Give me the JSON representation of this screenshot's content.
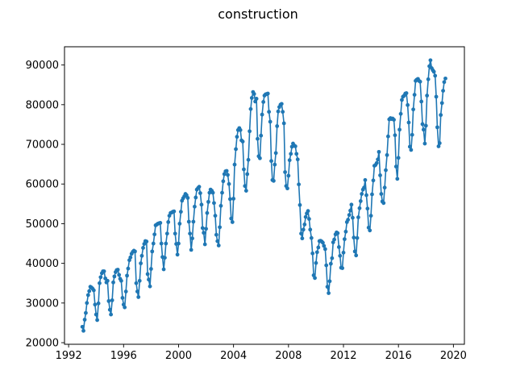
{
  "chart_data": {
    "type": "line",
    "title": "construction",
    "xlabel": "",
    "ylabel": "",
    "xlim": [
      1991.7,
      2020.8
    ],
    "ylim": [
      19600,
      94600
    ],
    "x_ticks": [
      1992,
      1996,
      2000,
      2004,
      2008,
      2012,
      2016,
      2020
    ],
    "x_tick_labels": [
      "1992",
      "1996",
      "2000",
      "2004",
      "2008",
      "2012",
      "2016",
      "2020"
    ],
    "y_ticks": [
      20000,
      30000,
      40000,
      50000,
      60000,
      70000,
      80000,
      90000
    ],
    "y_tick_labels": [
      "20000",
      "30000",
      "40000",
      "50000",
      "60000",
      "70000",
      "80000",
      "90000"
    ],
    "grid": false,
    "legend": "none",
    "marker": "circle",
    "line_color": "#1f77b4",
    "series": [
      {
        "x": [
          1993.0,
          1993.08,
          1993.17,
          1993.25,
          1993.33,
          1993.42,
          1993.5,
          1993.58,
          1993.67,
          1993.75,
          1993.83,
          1993.92,
          1994.0,
          1994.08,
          1994.17,
          1994.25,
          1994.33,
          1994.42,
          1994.5,
          1994.58,
          1994.67,
          1994.75,
          1994.83,
          1994.92,
          1995.0,
          1995.08,
          1995.17,
          1995.25,
          1995.33,
          1995.42,
          1995.5,
          1995.58,
          1995.67,
          1995.75,
          1995.83,
          1995.92,
          1996.0,
          1996.08,
          1996.17,
          1996.25,
          1996.33,
          1996.42,
          1996.5,
          1996.58,
          1996.67,
          1996.75,
          1996.83,
          1996.92,
          1997.0,
          1997.08,
          1997.17,
          1997.25,
          1997.33,
          1997.42,
          1997.5,
          1997.58,
          1997.67,
          1997.75,
          1997.83,
          1997.92,
          1998.0,
          1998.08,
          1998.17,
          1998.25,
          1998.33,
          1998.42,
          1998.5,
          1998.58,
          1998.67,
          1998.75,
          1998.83,
          1998.92,
          1999.0,
          1999.08,
          1999.17,
          1999.25,
          1999.33,
          1999.42,
          1999.5,
          1999.58,
          1999.67,
          1999.75,
          1999.83,
          1999.92,
          2000.0,
          2000.08,
          2000.17,
          2000.25,
          2000.33,
          2000.42,
          2000.5,
          2000.58,
          2000.67,
          2000.75,
          2000.83,
          2000.92,
          2001.0,
          2001.08,
          2001.17,
          2001.25,
          2001.33,
          2001.42,
          2001.5,
          2001.58,
          2001.67,
          2001.75,
          2001.83,
          2001.92,
          2002.0,
          2002.08,
          2002.17,
          2002.25,
          2002.33,
          2002.42,
          2002.5,
          2002.58,
          2002.67,
          2002.75,
          2002.83,
          2002.92,
          2003.0,
          2003.08,
          2003.17,
          2003.25,
          2003.33,
          2003.42,
          2003.5,
          2003.58,
          2003.67,
          2003.75,
          2003.83,
          2003.92,
          2004.0,
          2004.08,
          2004.17,
          2004.25,
          2004.33,
          2004.42,
          2004.5,
          2004.58,
          2004.67,
          2004.75,
          2004.83,
          2004.92,
          2005.0,
          2005.08,
          2005.17,
          2005.25,
          2005.33,
          2005.42,
          2005.5,
          2005.58,
          2005.67,
          2005.75,
          2005.83,
          2005.92,
          2006.0,
          2006.08,
          2006.17,
          2006.25,
          2006.33,
          2006.42,
          2006.5,
          2006.58,
          2006.67,
          2006.75,
          2006.83,
          2006.92,
          2007.0,
          2007.08,
          2007.17,
          2007.25,
          2007.33,
          2007.42,
          2007.5,
          2007.58,
          2007.67,
          2007.75,
          2007.83,
          2007.92,
          2008.0,
          2008.08,
          2008.17,
          2008.25,
          2008.33,
          2008.42,
          2008.5,
          2008.58,
          2008.67,
          2008.75,
          2008.83,
          2008.92,
          2009.0,
          2009.08,
          2009.17,
          2009.25,
          2009.33,
          2009.42,
          2009.5,
          2009.58,
          2009.67,
          2009.75,
          2009.83,
          2009.92,
          2010.0,
          2010.08,
          2010.17,
          2010.25,
          2010.33,
          2010.42,
          2010.5,
          2010.58,
          2010.67,
          2010.75,
          2010.83,
          2010.92,
          2011.0,
          2011.08,
          2011.17,
          2011.25,
          2011.33,
          2011.42,
          2011.5,
          2011.58,
          2011.67,
          2011.75,
          2011.83,
          2011.92,
          2012.0,
          2012.08,
          2012.17,
          2012.25,
          2012.33,
          2012.42,
          2012.5,
          2012.58,
          2012.67,
          2012.75,
          2012.83,
          2012.92,
          2013.0,
          2013.08,
          2013.17,
          2013.25,
          2013.33,
          2013.42,
          2013.5,
          2013.58,
          2013.67,
          2013.75,
          2013.83,
          2013.92,
          2014.0,
          2014.08,
          2014.17,
          2014.25,
          2014.33,
          2014.42,
          2014.5,
          2014.58,
          2014.67,
          2014.75,
          2014.83,
          2014.92,
          2015.0,
          2015.08,
          2015.17,
          2015.25,
          2015.33,
          2015.42,
          2015.5,
          2015.58,
          2015.67,
          2015.75,
          2015.83,
          2015.92,
          2016.0,
          2016.08,
          2016.17,
          2016.25,
          2016.33,
          2016.42,
          2016.5,
          2016.58,
          2016.67,
          2016.75,
          2016.83,
          2016.92,
          2017.0,
          2017.08,
          2017.17,
          2017.25,
          2017.33,
          2017.42,
          2017.5,
          2017.58,
          2017.67,
          2017.75,
          2017.83,
          2017.92,
          2018.0,
          2018.08,
          2018.17,
          2018.25,
          2018.33,
          2018.42,
          2018.5,
          2018.58,
          2018.67,
          2018.75,
          2018.83,
          2018.92,
          2019.0,
          2019.08,
          2019.17,
          2019.25,
          2019.33,
          2019.42
        ],
        "values": [
          24000,
          23000,
          25800,
          27500,
          30000,
          32000,
          33000,
          34100,
          33900,
          33600,
          33200,
          29600,
          27100,
          25700,
          29900,
          35000,
          36500,
          37500,
          38000,
          38000,
          36200,
          35200,
          35600,
          30500,
          28300,
          27100,
          30700,
          35200,
          36700,
          37800,
          38300,
          38400,
          37100,
          36100,
          35600,
          31300,
          29600,
          28900,
          32900,
          36900,
          38700,
          40800,
          41500,
          42400,
          42900,
          43200,
          43000,
          35000,
          32900,
          31500,
          35600,
          40000,
          41900,
          43900,
          44900,
          45600,
          45500,
          37300,
          35900,
          34200,
          38600,
          43000,
          45000,
          47300,
          49600,
          49800,
          50000,
          50100,
          50200,
          45000,
          41600,
          38500,
          41400,
          45000,
          47500,
          50400,
          52000,
          52700,
          52800,
          53000,
          53100,
          47500,
          44900,
          42200,
          45000,
          50000,
          53000,
          55800,
          56400,
          56900,
          57500,
          57200,
          56500,
          50500,
          47500,
          43400,
          46300,
          50500,
          54300,
          56600,
          58600,
          59000,
          59300,
          57700,
          54800,
          48900,
          47700,
          44800,
          48700,
          52700,
          55500,
          57800,
          58600,
          58300,
          57800,
          55200,
          52000,
          47200,
          45600,
          44500,
          49100,
          54500,
          57800,
          60700,
          62500,
          63200,
          63300,
          62300,
          60000,
          56200,
          51300,
          50400,
          56300,
          64900,
          68800,
          71900,
          73600,
          74100,
          73600,
          71000,
          70700,
          63700,
          59500,
          58300,
          62500,
          66100,
          73300,
          78900,
          81700,
          83200,
          82700,
          80800,
          81500,
          71400,
          67000,
          66500,
          72200,
          77500,
          80700,
          82300,
          82600,
          82700,
          82800,
          78200,
          75700,
          65800,
          61000,
          60800,
          64900,
          67800,
          74600,
          78300,
          79400,
          80000,
          80200,
          78200,
          75300,
          63000,
          59500,
          58900,
          62100,
          66000,
          67600,
          69400,
          70200,
          69700,
          69500,
          67600,
          66200,
          59900,
          54700,
          47500,
          46300,
          48500,
          49800,
          51700,
          52600,
          53200,
          51200,
          48500,
          46400,
          42500,
          37000,
          36300,
          40100,
          42800,
          44000,
          45600,
          45700,
          45500,
          45200,
          44400,
          43600,
          39500,
          34100,
          32500,
          35500,
          39900,
          41300,
          45300,
          46000,
          47300,
          47800,
          47600,
          44100,
          41900,
          38900,
          38800,
          42700,
          46100,
          48000,
          50400,
          51000,
          52200,
          53300,
          54800,
          51500,
          46500,
          43000,
          42000,
          46400,
          51600,
          53900,
          55700,
          57500,
          58600,
          59100,
          61000,
          57200,
          53800,
          49000,
          48300,
          52000,
          57400,
          60900,
          64600,
          64800,
          65300,
          66200,
          68100,
          62200,
          57500,
          55600,
          55200,
          59100,
          63500,
          67300,
          72000,
          76300,
          76600,
          76400,
          76500,
          76200,
          72300,
          64400,
          61300,
          66600,
          73700,
          77700,
          81200,
          82000,
          82300,
          82800,
          82900,
          79900,
          75500,
          69400,
          68600,
          72400,
          78800,
          82500,
          86000,
          86300,
          86500,
          86000,
          85800,
          80800,
          75100,
          73700,
          70200,
          74700,
          82300,
          86400,
          89700,
          91200,
          89200,
          88700,
          88300,
          87300,
          82000,
          74300,
          69500,
          70300,
          77400,
          80400,
          83500,
          85700,
          86600
        ]
      }
    ]
  }
}
